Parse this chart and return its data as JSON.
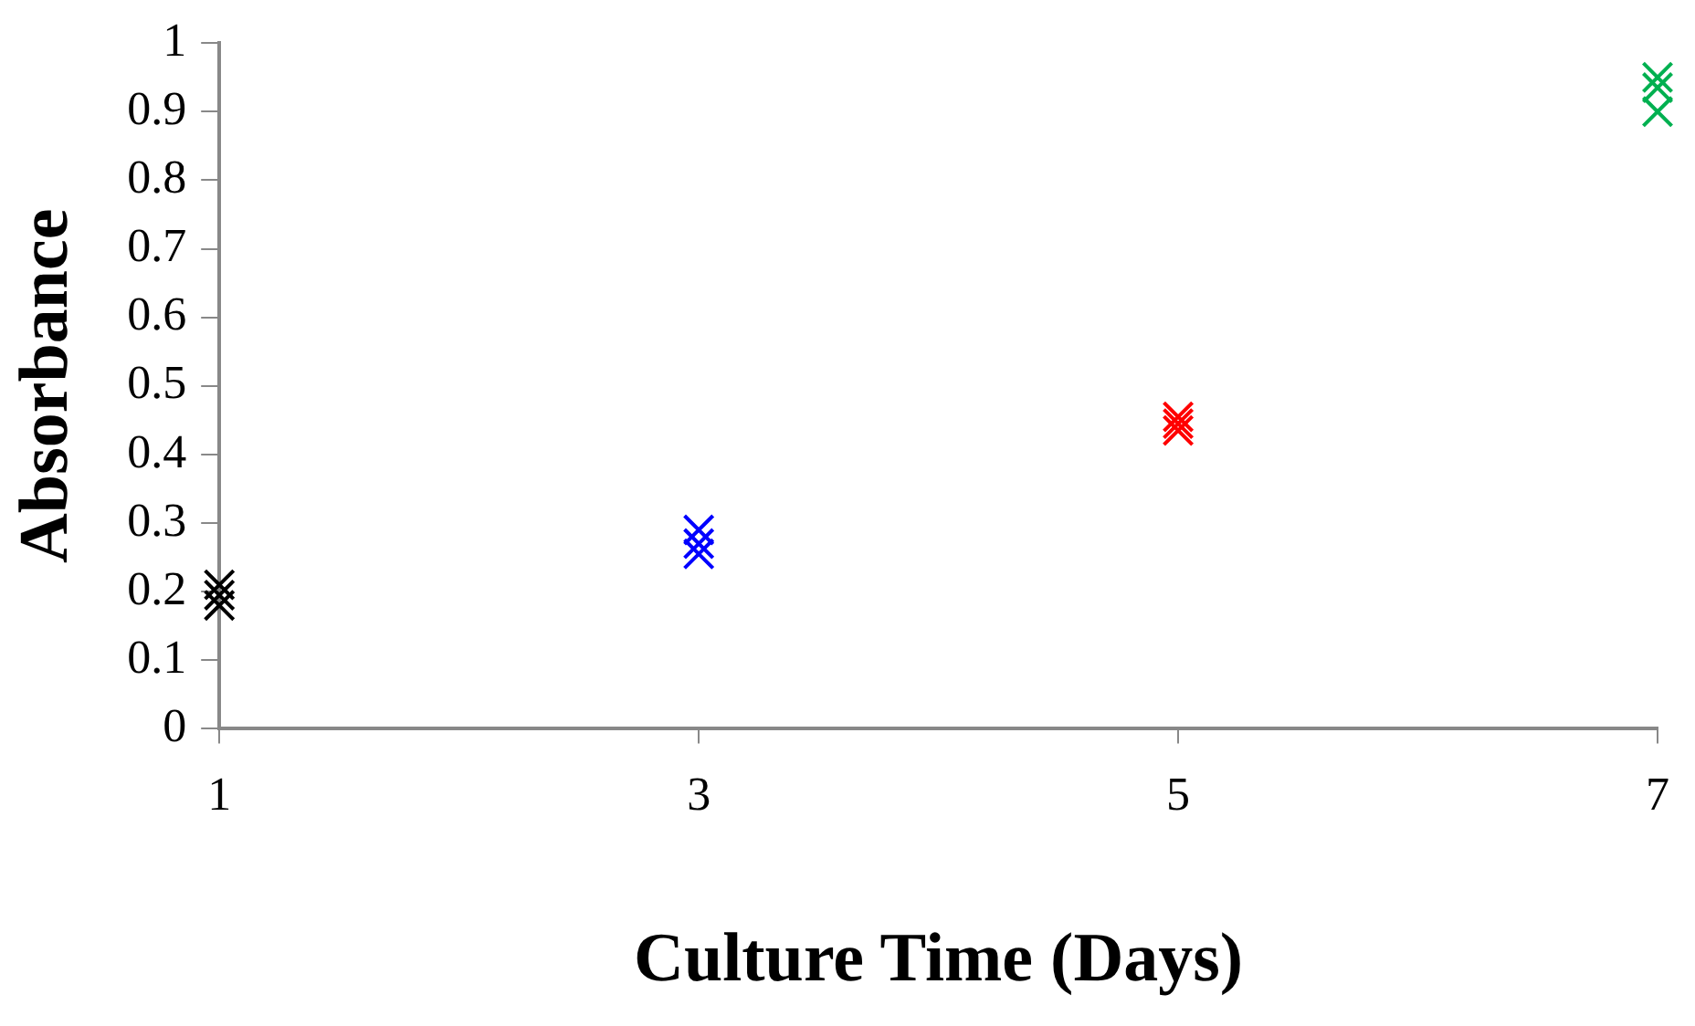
{
  "chart_data": {
    "type": "scatter",
    "xlabel": "Culture Time (Days)",
    "ylabel": "Absorbance",
    "marker": "cross",
    "grid": false,
    "legend": false,
    "xlim": [
      1,
      7
    ],
    "xticks": [
      1,
      3,
      5,
      7
    ],
    "ylim": [
      0,
      1
    ],
    "yticks": [
      0,
      0.1,
      0.2,
      0.3,
      0.4,
      0.5,
      0.6,
      0.7,
      0.8,
      0.9,
      1
    ],
    "series": [
      {
        "color": "#000000",
        "x": [
          1,
          1,
          1
        ],
        "values": [
          0.21,
          0.195,
          0.18
        ]
      },
      {
        "color": "#0000ff",
        "x": [
          3,
          3,
          3
        ],
        "values": [
          0.29,
          0.27,
          0.255
        ]
      },
      {
        "color": "#ff0000",
        "x": [
          5,
          5,
          5
        ],
        "values": [
          0.455,
          0.445,
          0.435
        ]
      },
      {
        "color": "#00b050",
        "x": [
          7,
          7,
          7
        ],
        "values": [
          0.95,
          0.935,
          0.9
        ]
      }
    ]
  }
}
